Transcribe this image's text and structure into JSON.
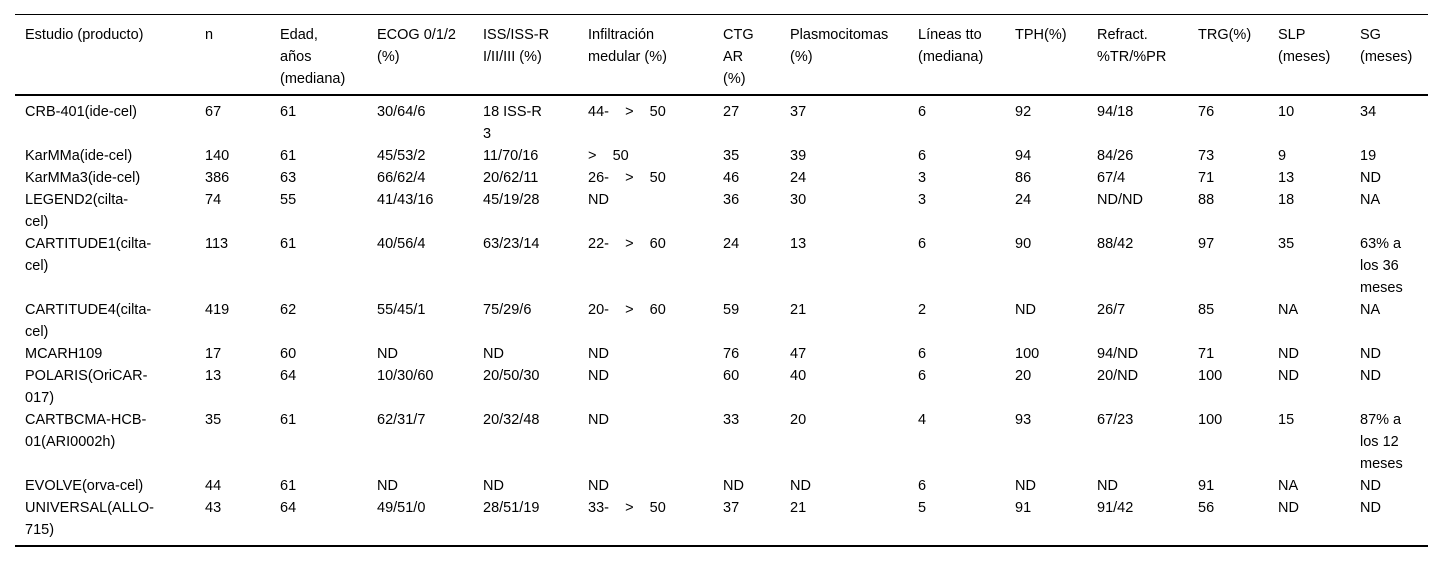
{
  "table": {
    "columns": [
      {
        "label": "Estudio (producto)"
      },
      {
        "label": "n"
      },
      {
        "label": "Edad,\naños\n(mediana)"
      },
      {
        "label": "ECOG 0/1/2\n(%)"
      },
      {
        "label": "ISS/ISS-R\nI/II/III (%)"
      },
      {
        "label": "Infiltración\nmedular (%)"
      },
      {
        "label": "CTG\nAR\n(%)"
      },
      {
        "label": "Plasmocitomas\n(%)"
      },
      {
        "label": "Líneas tto\n(mediana)"
      },
      {
        "label": "TPH(%)"
      },
      {
        "label": "Refract.\n%TR/%PR"
      },
      {
        "label": "TRG(%)"
      },
      {
        "label": "SLP\n(meses)"
      },
      {
        "label": "SG\n(meses)"
      }
    ],
    "rows": [
      {
        "cells": [
          "CRB-401(ide-cel)",
          "67",
          "61",
          "30/64/6",
          "18 ISS-R\n3",
          "44-    >    50",
          "27",
          "37",
          "6",
          "92",
          "94/18",
          "76",
          "10",
          "34"
        ]
      },
      {
        "cells": [
          "KarMMa(ide-cel)",
          "140",
          "61",
          "45/53/2",
          "11/70/16",
          ">    50",
          "35",
          "39",
          "6",
          "94",
          "84/26",
          "73",
          "9",
          "19"
        ]
      },
      {
        "cells": [
          "KarMMa3(ide-cel)",
          "386",
          "63",
          "66/62/4",
          "20/62/11",
          "26-    >    50",
          "46",
          "24",
          "3",
          "86",
          "67/4",
          "71",
          "13",
          "ND"
        ]
      },
      {
        "cells": [
          "LEGEND2(cilta-\ncel)",
          "74",
          "55",
          "41/43/16",
          "45/19/28",
          "ND",
          "36",
          "30",
          "3",
          "24",
          "ND/ND",
          "88",
          "18",
          "NA"
        ]
      },
      {
        "cells": [
          "CARTITUDE1(cilta-\ncel)",
          "113",
          "61",
          "40/56/4",
          "63/23/14",
          "22-    >    60",
          "24",
          "13",
          "6",
          "90",
          "88/42",
          "97",
          "35",
          "63% a\nlos 36\nmeses"
        ]
      },
      {
        "cells": [
          "CARTITUDE4(cilta-\ncel)",
          "419",
          "62",
          "55/45/1",
          "75/29/6",
          "20-    >    60",
          "59",
          "21",
          "2",
          "ND",
          "26/7",
          "85",
          "NA",
          "NA"
        ]
      },
      {
        "cells": [
          "MCARH109",
          "17",
          "60",
          "ND",
          "ND",
          "ND",
          "76",
          "47",
          "6",
          "100",
          "94/ND",
          "71",
          "ND",
          "ND"
        ]
      },
      {
        "cells": [
          "POLARIS(OriCAR-\n017)",
          "13",
          "64",
          "10/30/60",
          "20/50/30",
          "ND",
          "60",
          "40",
          "6",
          "20",
          "20/ND",
          "100",
          "ND",
          "ND"
        ]
      },
      {
        "cells": [
          "CARTBCMA-HCB-\n01(ARI0002h)",
          "35",
          "61",
          "62/31/7",
          "20/32/48",
          "ND",
          "33",
          "20",
          "4",
          "93",
          "67/23",
          "100",
          "15",
          "87% a\nlos 12\nmeses"
        ]
      },
      {
        "cells": [
          "EVOLVE(orva-cel)",
          "44",
          "61",
          "ND",
          "ND",
          "ND",
          "ND",
          "ND",
          "6",
          "ND",
          "ND",
          "91",
          "NA",
          "ND"
        ]
      },
      {
        "cells": [
          "UNIVERSAL(ALLO-\n715)",
          "43",
          "64",
          "49/51/0",
          "28/51/19",
          "33-    >    50",
          "37",
          "21",
          "5",
          "91",
          "91/42",
          "56",
          "ND",
          "ND"
        ]
      }
    ]
  }
}
